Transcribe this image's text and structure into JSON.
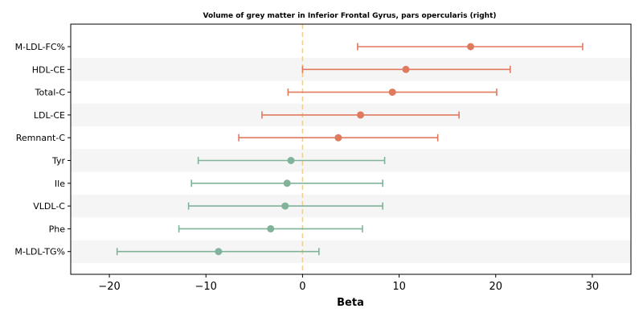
{
  "chart_data": {
    "type": "forest",
    "title": "Volume of grey matter in Inferior Frontal Gyrus, pars opercularis (right)",
    "xlabel": "Beta",
    "ylabel": "",
    "xlim": [
      -24,
      34
    ],
    "xticks": [
      -20,
      -10,
      0,
      10,
      20,
      30
    ],
    "xtick_labels": [
      "−20",
      "−10",
      "0",
      "10",
      "20",
      "30"
    ],
    "reference_line": 0,
    "grid": false,
    "row_striping": true,
    "colors": {
      "positive": "#e07a5f",
      "negative": "#81b29a",
      "reference_line": "#f2cc8f",
      "stripe": "#f5f5f5"
    },
    "items": [
      {
        "label": "M-LDL-FC%",
        "beta": 17.4,
        "ci_low": 5.7,
        "ci_high": 29.0,
        "group": "positive"
      },
      {
        "label": "HDL-CE",
        "beta": 10.7,
        "ci_low": 0.0,
        "ci_high": 21.5,
        "group": "positive"
      },
      {
        "label": "Total-C",
        "beta": 9.3,
        "ci_low": -1.5,
        "ci_high": 20.1,
        "group": "positive"
      },
      {
        "label": "LDL-CE",
        "beta": 6.0,
        "ci_low": -4.2,
        "ci_high": 16.2,
        "group": "positive"
      },
      {
        "label": "Remnant-C",
        "beta": 3.7,
        "ci_low": -6.6,
        "ci_high": 14.0,
        "group": "positive"
      },
      {
        "label": "Tyr",
        "beta": -1.2,
        "ci_low": -10.8,
        "ci_high": 8.5,
        "group": "negative"
      },
      {
        "label": "Ile",
        "beta": -1.6,
        "ci_low": -11.5,
        "ci_high": 8.3,
        "group": "negative"
      },
      {
        "label": "VLDL-C",
        "beta": -1.8,
        "ci_low": -11.8,
        "ci_high": 8.3,
        "group": "negative"
      },
      {
        "label": "Phe",
        "beta": -3.3,
        "ci_low": -12.8,
        "ci_high": 6.2,
        "group": "negative"
      },
      {
        "label": "M-LDL-TG%",
        "beta": -8.7,
        "ci_low": -19.2,
        "ci_high": 1.7,
        "group": "negative"
      }
    ]
  }
}
